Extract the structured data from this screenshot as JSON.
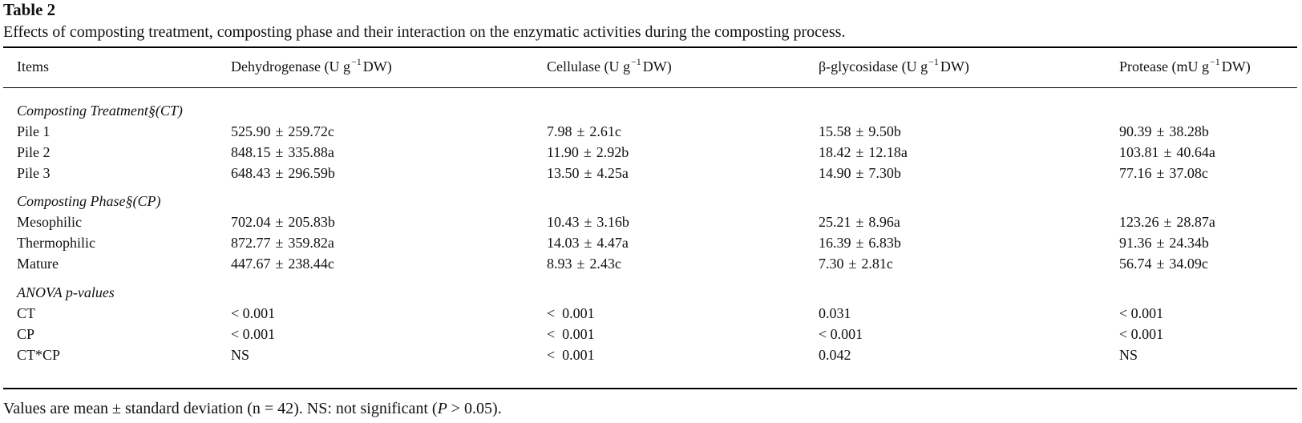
{
  "table": {
    "label": "Table 2",
    "caption": "Effects of composting treatment, composting phase and their interaction on the enzymatic activities during the composting process.",
    "columns": [
      {
        "pre": "Items",
        "sup": "",
        "post": ""
      },
      {
        "pre": "Dehydrogenase (U g",
        "sup": "−1",
        "post": "DW)"
      },
      {
        "pre": "Cellulase (U g",
        "sup": "−1",
        "post": "DW)"
      },
      {
        "pre": "β-glycosidase (U g",
        "sup": "−1",
        "post": "DW)"
      },
      {
        "pre": "Protease (mU g",
        "sup": "−1",
        "post": "DW)"
      }
    ],
    "pm": "±",
    "sections": [
      {
        "title": "Composting Treatment§(CT)",
        "rows": [
          {
            "label": "Pile 1",
            "cells": [
              [
                "525.90",
                "259.72c"
              ],
              [
                "7.98",
                "2.61c"
              ],
              [
                "15.58",
                "9.50b"
              ],
              [
                "90.39",
                "38.28b"
              ]
            ]
          },
          {
            "label": "Pile 2",
            "cells": [
              [
                "848.15",
                "335.88a"
              ],
              [
                "11.90",
                "2.92b"
              ],
              [
                "18.42",
                "12.18a"
              ],
              [
                "103.81",
                "40.64a"
              ]
            ]
          },
          {
            "label": "Pile 3",
            "cells": [
              [
                "648.43",
                "296.59b"
              ],
              [
                "13.50",
                "4.25a"
              ],
              [
                "14.90",
                "7.30b"
              ],
              [
                "77.16",
                "37.08c"
              ]
            ]
          }
        ]
      },
      {
        "title": "Composting Phase§(CP)",
        "rows": [
          {
            "label": "Mesophilic",
            "cells": [
              [
                "702.04",
                "205.83b"
              ],
              [
                "10.43",
                "3.16b"
              ],
              [
                "25.21",
                "8.96a"
              ],
              [
                "123.26",
                "28.87a"
              ]
            ]
          },
          {
            "label": "Thermophilic",
            "cells": [
              [
                "872.77",
                "359.82a"
              ],
              [
                "14.03",
                "4.47a"
              ],
              [
                "16.39",
                "6.83b"
              ],
              [
                "91.36",
                "24.34b"
              ]
            ]
          },
          {
            "label": "Mature",
            "cells": [
              [
                "447.67",
                "238.44c"
              ],
              [
                "8.93",
                "2.43c"
              ],
              [
                "7.30",
                "2.81c"
              ],
              [
                "56.74",
                "34.09c"
              ]
            ]
          }
        ]
      }
    ],
    "anova": {
      "title": "ANOVA p-values",
      "rows": [
        {
          "label": "CT",
          "values": [
            "< 0.001",
            "<  0.001",
            "0.031",
            "< 0.001"
          ]
        },
        {
          "label": "CP",
          "values": [
            "< 0.001",
            "<  0.001",
            "< 0.001",
            "< 0.001"
          ]
        },
        {
          "label": "CT*CP",
          "values": [
            "NS",
            "<  0.001",
            "0.042",
            "NS"
          ]
        }
      ]
    },
    "footnote": {
      "pre": "Values are mean ± standard deviation (n = 42). NS: not significant (",
      "italic": "P",
      "post": " > 0.05)."
    }
  }
}
